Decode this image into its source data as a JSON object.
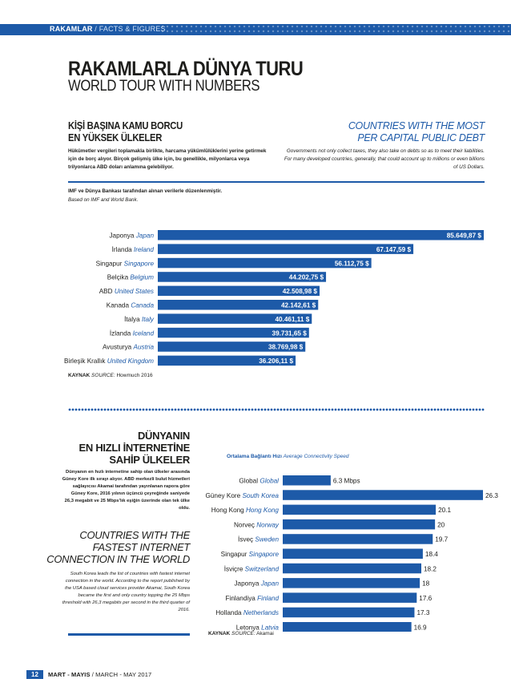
{
  "header": {
    "section_tag": "RAKAMLAR",
    "section_tag_en": " / FACTS & FIGURES"
  },
  "title": {
    "main": "RAKAMLARLA DÜNYA TURU",
    "subtitle": "WORLD TOUR WITH NUMBERS"
  },
  "debt_section": {
    "title_tr": [
      "KİŞİ BAŞINA KAMU BORCU",
      "EN YÜKSEK ÜLKELER"
    ],
    "desc_tr": "Hükümetler vergileri toplamakla birlikte, harcama yükümlülüklerini yerine getirmek için de borç alıyor. Birçok gelişmiş ülke için, bu genellikle, milyonlarca veya trilyonlarca ABD doları anlamına gelebiliyor.",
    "title_en": [
      "COUNTRIES WITH THE MOST",
      "PER CAPITAL PUBLIC DEBT"
    ],
    "desc_en": "Governments not only collect taxes, they also take on debts so as to meet their liabilities. For many developed countries, generally, that could account up to millions or even billions of US Dollars.",
    "note_tr": "IMF ve Dünya Bankası tarafından alınan verilerle düzenlenmiştir.",
    "note_en": "Based on IMF and World Bank.",
    "source_label": "KAYNAK",
    "source_en": " SOURCE:",
    "source_value": " Howmuch 2016"
  },
  "internet_section": {
    "title_tr": [
      "DÜNYANIN",
      "EN HIZLI İNTERNETİNE",
      "SAHİP ÜLKELER"
    ],
    "desc_tr": "Dünyanın en hızlı internetine sahip olan ülkeler arasında Güney Kore ilk sırayı alıyor. ABD merkezli bulut hizmetleri sağlayıcısı Akamai tarafından yayınlanan rapora göre Güney Kore, 2016 yılının üçüncü çeyreğinde saniyede 26,3 megabit ve 25 Mbps'lık eşiğin üzerinde olan tek ülke oldu.",
    "title_en": [
      "COUNTRIES WITH THE",
      "FASTEST INTERNET",
      "CONNECTION IN THE WORLD"
    ],
    "desc_en": "South Korea leads the list of countries with fastest internet connection in the world. According to the report published by the USA based cloud services provider Akamai, South Korea became the first and only country topping the 25 Mbps threshold with 26,3 megabits per second in the third quarter of 2016.",
    "caption_tr": "Ortalama Bağlantı Hızı",
    "caption_en": " Average Connectivity Speed",
    "source_label": "KAYNAK",
    "source_en": " SOURCE:",
    "source_value": " Akamai"
  },
  "chart_data": [
    {
      "type": "bar",
      "orientation": "horizontal",
      "categories_tr": [
        "Japonya",
        "İrlanda",
        "Singapur",
        "Belçika",
        "ABD",
        "Kanada",
        "İtalya",
        "İzlanda",
        "Avusturya",
        "Birleşik Krallık"
      ],
      "categories_en": [
        "Japan",
        "Ireland",
        "Singapore",
        "Belgium",
        "United States",
        "Canada",
        "Italy",
        "Iceland",
        "Austria",
        "United Kingdom"
      ],
      "values": [
        85649.87,
        67147.59,
        56112.75,
        44202.75,
        42508.98,
        42142.61,
        40461.11,
        39731.65,
        38769.98,
        36206.11
      ],
      "value_labels": [
        "85.649,87 $",
        "67.147,59 $",
        "56.112,75 $",
        "44.202,75 $",
        "42.508,98 $",
        "42.142,61 $",
        "40.461,11 $",
        "39.731,65 $",
        "38.769,98 $",
        "36.206,11 $"
      ],
      "color": "#1d5aa8"
    },
    {
      "type": "bar",
      "orientation": "horizontal",
      "categories_tr": [
        "Global",
        "Güney Kore",
        "Hong Kong",
        "Norveç",
        "İsveç",
        "Singapur",
        "İsviçre",
        "Japonya",
        "Finlandiya",
        "Hollanda",
        "Letonya"
      ],
      "categories_en": [
        "Global",
        "South Korea",
        "Hong Kong",
        "Norway",
        "Sweden",
        "Singapore",
        "Switzerland",
        "Japan",
        "Finland",
        "Netherlands",
        "Latvia"
      ],
      "values": [
        6.3,
        26.3,
        20.1,
        20,
        19.7,
        18.4,
        18.2,
        18,
        17.6,
        17.3,
        16.9
      ],
      "value_labels": [
        "6.3 Mbps",
        "26.3",
        "20.1",
        "20",
        "19.7",
        "18.4",
        "18.2",
        "18",
        "17.6",
        "17.3",
        "16.9"
      ],
      "color": "#1d5aa8"
    }
  ],
  "footer": {
    "page_number": "12",
    "issue_tr": "MART - MAYIS",
    "issue_en": " / MARCH - MAY 2017"
  }
}
